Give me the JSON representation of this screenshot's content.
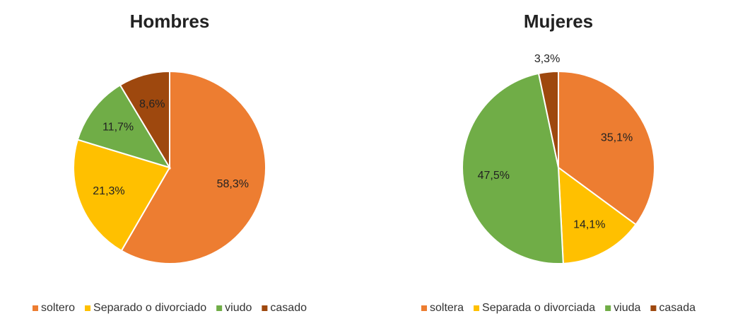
{
  "chart_data": [
    {
      "type": "pie",
      "title": "Hombres",
      "categories": [
        "soltero",
        "Separado o divorciado",
        "viudo",
        "casado"
      ],
      "values": [
        58.3,
        21.3,
        11.7,
        8.6
      ],
      "value_labels": [
        "58,3%",
        "21,3%",
        "11,7%",
        "8,6%"
      ],
      "colors": [
        "#ED7D31",
        "#FFC000",
        "#70AD47",
        "#9E480E"
      ],
      "legend": "bottom"
    },
    {
      "type": "pie",
      "title": "Mujeres",
      "categories": [
        "soltera",
        "Separada o divorciada",
        "viuda",
        "casada"
      ],
      "values": [
        35.1,
        14.1,
        47.5,
        3.3
      ],
      "value_labels": [
        "35,1%",
        "14,1%",
        "47,5%",
        "3,3%"
      ],
      "colors": [
        "#ED7D31",
        "#FFC000",
        "#70AD47",
        "#9E480E"
      ],
      "legend": "bottom"
    }
  ]
}
